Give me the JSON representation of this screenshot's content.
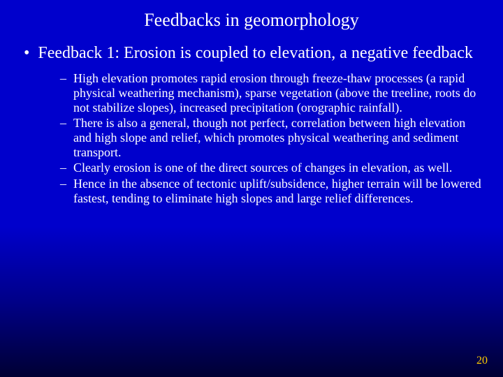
{
  "slide": {
    "title": "Feedbacks in geomorphology",
    "title_fontsize": 26,
    "title_color": "#ffffff",
    "background_gradient": [
      "#0000cc",
      "#0000cc",
      "#000088",
      "#000033"
    ],
    "main_bullet": {
      "marker": "•",
      "text": "Feedback 1: Erosion is coupled to elevation, a negative feedback",
      "fontsize": 24,
      "color": "#ffffff",
      "line_height": 1.18
    },
    "sub_bullets": {
      "marker": "–",
      "fontsize": 18,
      "color": "#ffffff",
      "line_height": 1.15,
      "items": [
        "High elevation promotes rapid erosion through freeze-thaw processes (a rapid physical weathering mechanism), sparse vegetation (above the treeline, roots do not stabilize slopes), increased precipitation (orographic rainfall).",
        "There is also a general, though not perfect, correlation between high elevation and high slope and relief, which promotes physical weathering and sediment transport.",
        "Clearly erosion is one of the direct sources of changes in elevation, as well.",
        "Hence in the absence of tectonic uplift/subsidence, higher terrain will be lowered fastest, tending to eliminate high slopes and large relief differences."
      ]
    },
    "page_number": "20",
    "page_number_fontsize": 16,
    "page_number_color": "#ffcc00"
  }
}
